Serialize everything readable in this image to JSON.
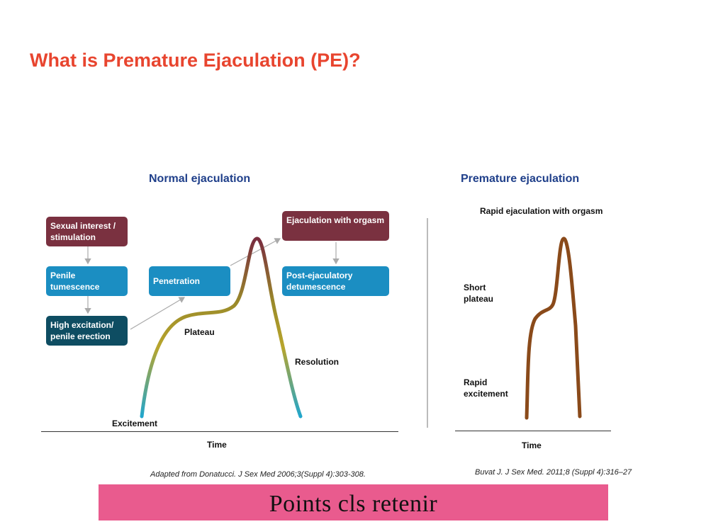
{
  "title": "What is Premature Ejaculation (PE)?",
  "normal": {
    "heading": "Normal ejaculation",
    "boxes": {
      "sexual_interest": "Sexual interest / stimulation",
      "penile_tumescence": "Penile tumescence",
      "high_excitation": "High excitation/ penile erection",
      "penetration": "Penetration",
      "ejaculation_orgasm": "Ejaculation with orgasm",
      "post_ejaculatory": "Post-ejaculatory detumescence"
    },
    "labels": {
      "plateau": "Plateau",
      "resolution": "Resolution",
      "excitement": "Excitement",
      "time": "Time"
    },
    "citation": "Adapted from Donatucci. J Sex Med 2006;3(Suppl 4):303-308."
  },
  "premature": {
    "heading": "Premature ejaculation",
    "labels": {
      "rapid_orgasm": "Rapid ejaculation with orgasm",
      "short_plateau": "Short plateau",
      "rapid_excitement": "Rapid excitement",
      "time": "Time"
    },
    "citation": "Buvat J. J Sex Med. 2011;8 (Suppl 4):316–27"
  },
  "banner": "Points cls  retenir",
  "colors": {
    "title": "#e8452f",
    "heading": "#1f3f8a",
    "maroon_box": "#7a3140",
    "blue_box": "#1b8ec2",
    "dark_box": "#0e4d62",
    "premature_curve": "#8a4a1a",
    "banner": "#e95b8e"
  }
}
